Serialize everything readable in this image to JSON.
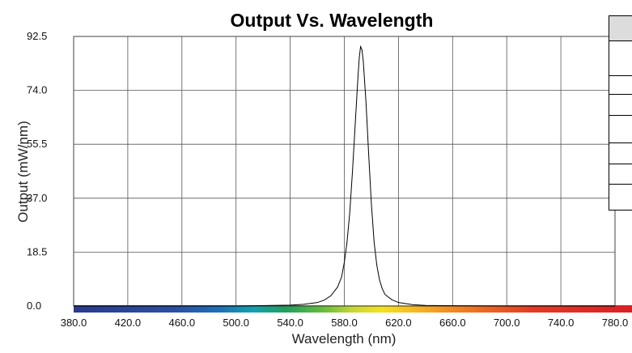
{
  "chart_data": {
    "type": "line",
    "title": "Output Vs. Wavelength",
    "xlabel": "Wavelength (nm)",
    "ylabel": "Output (mW/nm)",
    "xlim": [
      380,
      780
    ],
    "ylim": [
      0,
      92.5
    ],
    "x_ticks": [
      "380.0",
      "420.0",
      "460.0",
      "500.0",
      "540.0",
      "580.0",
      "620.0",
      "660.0",
      "700.0",
      "740.0",
      "780.0"
    ],
    "y_ticks": [
      "0.0",
      "18.5",
      "37.0",
      "55.5",
      "74.0",
      "92.5"
    ],
    "grid": true,
    "legend": "none",
    "series": [
      {
        "x": [
          380,
          500,
          540,
          550,
          560,
          565,
          570,
          575,
          578,
          580,
          582,
          584,
          586,
          588,
          590,
          591,
          592,
          593,
          594,
          596,
          598,
          600,
          602,
          604,
          606,
          608,
          610,
          615,
          620,
          630,
          640,
          660,
          700,
          780
        ],
        "values": [
          0,
          0,
          0.3,
          0.6,
          1.2,
          2.0,
          3.5,
          6.5,
          10,
          15,
          22,
          32,
          46,
          62,
          78,
          85,
          89,
          88,
          84,
          70,
          52,
          35,
          22,
          14,
          9,
          6,
          4,
          2.2,
          1.2,
          0.5,
          0.2,
          0.1,
          0,
          0
        ]
      }
    ]
  },
  "side_table": {
    "rows": 7
  }
}
